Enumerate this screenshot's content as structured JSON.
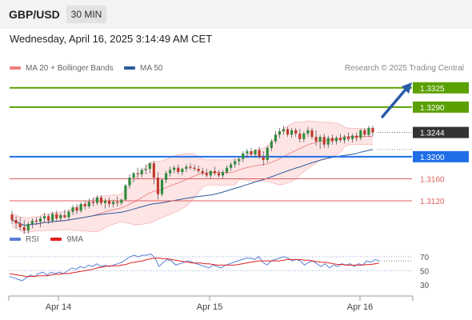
{
  "header": {
    "pair": "GBP/USD",
    "timeframe": "30 MIN"
  },
  "datetime": "Wednesday, April 16, 2025 3:14:49 AM CET",
  "legend": {
    "ma20_label": "MA 20 + Bollinger Bands",
    "ma20_color": "#f08080",
    "ma50_label": "MA 50",
    "ma50_color": "#2e5a9c"
  },
  "research": "Research © 2025 Trading Central",
  "rsi_legend": {
    "rsi_label": "RSI",
    "rsi_color": "#5a7fd6",
    "ma9_label": "9MA",
    "ma9_color": "#e02020"
  },
  "chart_data": {
    "type": "candlestick",
    "x_labels": [
      "Apr 14",
      "Apr 15",
      "Apr 16"
    ],
    "price_axis_range": [
      1.3075,
      1.3345
    ],
    "levels": [
      {
        "price": 1.3325,
        "label": "1.3325",
        "kind": "resistance",
        "color": "#5aa000"
      },
      {
        "price": 1.329,
        "label": "1.3290",
        "kind": "resistance",
        "color": "#5aa000"
      },
      {
        "price": 1.3244,
        "label": "1.3244",
        "kind": "last",
        "color": "#333333"
      },
      {
        "price": 1.32,
        "label": "1.3200",
        "kind": "pivot",
        "color": "#1f6ee8"
      },
      {
        "price": 1.316,
        "label": "1.3160",
        "kind": "support",
        "color": "#e06060"
      },
      {
        "price": 1.312,
        "label": "1.3120",
        "kind": "support",
        "color": "#e06060"
      }
    ],
    "candles": [
      [
        1.3095,
        1.3102,
        1.3078,
        1.3085
      ],
      [
        1.3085,
        1.3092,
        1.307,
        1.3079
      ],
      [
        1.3079,
        1.309,
        1.3066,
        1.3072
      ],
      [
        1.3072,
        1.3085,
        1.306,
        1.3066
      ],
      [
        1.3066,
        1.3082,
        1.306,
        1.3078
      ],
      [
        1.3078,
        1.3088,
        1.307,
        1.3084
      ],
      [
        1.3084,
        1.309,
        1.3076,
        1.3082
      ],
      [
        1.3082,
        1.3092,
        1.3072,
        1.3088
      ],
      [
        1.3088,
        1.3098,
        1.308,
        1.3092
      ],
      [
        1.3092,
        1.3096,
        1.3078,
        1.3084
      ],
      [
        1.3084,
        1.31,
        1.308,
        1.3096
      ],
      [
        1.3096,
        1.3102,
        1.3082,
        1.3088
      ],
      [
        1.3088,
        1.3098,
        1.3082,
        1.3094
      ],
      [
        1.3094,
        1.3104,
        1.3088,
        1.309
      ],
      [
        1.309,
        1.3104,
        1.3086,
        1.31
      ],
      [
        1.31,
        1.3112,
        1.3094,
        1.3108
      ],
      [
        1.3108,
        1.3114,
        1.3096,
        1.3102
      ],
      [
        1.3102,
        1.3118,
        1.3098,
        1.3114
      ],
      [
        1.3114,
        1.312,
        1.3104,
        1.311
      ],
      [
        1.311,
        1.3124,
        1.3106,
        1.3118
      ],
      [
        1.3118,
        1.3126,
        1.311,
        1.3116
      ],
      [
        1.3116,
        1.313,
        1.3112,
        1.3126
      ],
      [
        1.3126,
        1.313,
        1.3112,
        1.3116
      ],
      [
        1.3116,
        1.3124,
        1.3106,
        1.312
      ],
      [
        1.312,
        1.3126,
        1.3108,
        1.3114
      ],
      [
        1.3114,
        1.3122,
        1.3108,
        1.3118
      ],
      [
        1.3118,
        1.3128,
        1.311,
        1.3116
      ],
      [
        1.3116,
        1.3124,
        1.3112,
        1.3122
      ],
      [
        1.3122,
        1.315,
        1.312,
        1.3148
      ],
      [
        1.3148,
        1.3168,
        1.3142,
        1.3162
      ],
      [
        1.3162,
        1.3172,
        1.3154,
        1.317
      ],
      [
        1.317,
        1.318,
        1.316,
        1.3168
      ],
      [
        1.3168,
        1.318,
        1.3162,
        1.3176
      ],
      [
        1.3176,
        1.3186,
        1.3168,
        1.3178
      ],
      [
        1.3178,
        1.319,
        1.317,
        1.3188
      ],
      [
        1.3188,
        1.3192,
        1.315,
        1.3162
      ],
      [
        1.3162,
        1.3172,
        1.3122,
        1.3132
      ],
      [
        1.3132,
        1.316,
        1.3128,
        1.3158
      ],
      [
        1.3158,
        1.3174,
        1.3152,
        1.317
      ],
      [
        1.317,
        1.3182,
        1.3164,
        1.3176
      ],
      [
        1.3176,
        1.3184,
        1.317,
        1.318
      ],
      [
        1.318,
        1.3186,
        1.3168,
        1.3172
      ],
      [
        1.3172,
        1.318,
        1.3166,
        1.3178
      ],
      [
        1.3178,
        1.3186,
        1.3172,
        1.3182
      ],
      [
        1.3182,
        1.3188,
        1.3176,
        1.318
      ],
      [
        1.318,
        1.3186,
        1.3174,
        1.3178
      ],
      [
        1.3178,
        1.3184,
        1.317,
        1.3174
      ],
      [
        1.3174,
        1.318,
        1.3166,
        1.317
      ],
      [
        1.317,
        1.3178,
        1.3162,
        1.3166
      ],
      [
        1.3166,
        1.3176,
        1.316,
        1.3174
      ],
      [
        1.3174,
        1.3182,
        1.3166,
        1.317
      ],
      [
        1.317,
        1.3176,
        1.3162,
        1.3166
      ],
      [
        1.3166,
        1.3176,
        1.316,
        1.3172
      ],
      [
        1.3172,
        1.3184,
        1.3168,
        1.318
      ],
      [
        1.318,
        1.319,
        1.3174,
        1.3186
      ],
      [
        1.3186,
        1.3196,
        1.318,
        1.3192
      ],
      [
        1.3192,
        1.32,
        1.3184,
        1.3196
      ],
      [
        1.3196,
        1.321,
        1.319,
        1.3206
      ],
      [
        1.3206,
        1.3214,
        1.3198,
        1.321
      ],
      [
        1.321,
        1.3216,
        1.32,
        1.3204
      ],
      [
        1.3204,
        1.3214,
        1.3198,
        1.3212
      ],
      [
        1.3212,
        1.3218,
        1.3196,
        1.32
      ],
      [
        1.32,
        1.321,
        1.3184,
        1.3194
      ],
      [
        1.3194,
        1.322,
        1.319,
        1.3216
      ],
      [
        1.3216,
        1.3232,
        1.321,
        1.3228
      ],
      [
        1.3228,
        1.3246,
        1.3224,
        1.324
      ],
      [
        1.324,
        1.3252,
        1.3234,
        1.3246
      ],
      [
        1.3246,
        1.3256,
        1.324,
        1.325
      ],
      [
        1.325,
        1.3254,
        1.3236,
        1.324
      ],
      [
        1.324,
        1.3252,
        1.3234,
        1.3248
      ],
      [
        1.3248,
        1.3252,
        1.3236,
        1.3242
      ],
      [
        1.3242,
        1.325,
        1.3226,
        1.3232
      ],
      [
        1.3232,
        1.3246,
        1.3226,
        1.3242
      ],
      [
        1.3242,
        1.3254,
        1.3236,
        1.3248
      ],
      [
        1.3248,
        1.3252,
        1.3232,
        1.3236
      ],
      [
        1.3236,
        1.3248,
        1.322,
        1.3228
      ],
      [
        1.3228,
        1.324,
        1.3214,
        1.3236
      ],
      [
        1.3236,
        1.3242,
        1.3216,
        1.3222
      ],
      [
        1.3222,
        1.3238,
        1.3216,
        1.3234
      ],
      [
        1.3234,
        1.324,
        1.3222,
        1.3228
      ],
      [
        1.3228,
        1.3238,
        1.3222,
        1.3234
      ],
      [
        1.3234,
        1.3242,
        1.3226,
        1.323
      ],
      [
        1.323,
        1.324,
        1.3224,
        1.3236
      ],
      [
        1.3236,
        1.3244,
        1.3228,
        1.3232
      ],
      [
        1.3232,
        1.3242,
        1.3226,
        1.3238
      ],
      [
        1.3238,
        1.3244,
        1.3228,
        1.3234
      ],
      [
        1.3234,
        1.325,
        1.323,
        1.3248
      ],
      [
        1.3248,
        1.3252,
        1.3236,
        1.324
      ],
      [
        1.324,
        1.3256,
        1.3236,
        1.3252
      ],
      [
        1.3252,
        1.3256,
        1.3238,
        1.3244
      ]
    ],
    "rsi_axis": {
      "ticks": [
        "70",
        "50",
        "30"
      ],
      "range": [
        20,
        80
      ]
    },
    "rsi": [
      42,
      40,
      38,
      36,
      40,
      44,
      42,
      46,
      48,
      44,
      48,
      46,
      48,
      46,
      50,
      54,
      52,
      56,
      54,
      58,
      56,
      60,
      56,
      58,
      56,
      58,
      60,
      62,
      66,
      70,
      72,
      70,
      72,
      72,
      74,
      68,
      56,
      62,
      66,
      64,
      58,
      60,
      62,
      64,
      62,
      60,
      58,
      56,
      54,
      58,
      56,
      54,
      58,
      60,
      62,
      64,
      66,
      68,
      68,
      66,
      70,
      62,
      58,
      64,
      66,
      68,
      70,
      68,
      64,
      66,
      64,
      58,
      62,
      64,
      60,
      56,
      60,
      54,
      58,
      56,
      60,
      58,
      60,
      56,
      60,
      58,
      64,
      62,
      66,
      64
    ],
    "rsi_ma9": [
      46,
      45,
      44,
      43,
      42,
      42,
      42,
      43,
      43,
      43,
      44,
      45,
      45,
      46,
      46,
      47,
      48,
      49,
      50,
      51,
      52,
      54,
      55,
      56,
      57,
      57,
      57,
      58,
      59,
      61,
      62,
      63,
      64,
      66,
      67,
      68,
      68,
      67,
      67,
      66,
      65,
      64,
      63,
      62,
      61,
      61,
      61,
      60,
      60,
      59,
      58,
      58,
      58,
      58,
      58,
      59,
      60,
      61,
      62,
      63,
      64,
      64,
      64,
      64,
      64,
      64,
      65,
      66,
      66,
      66,
      66,
      65,
      65,
      64,
      63,
      62,
      62,
      61,
      60,
      59,
      59,
      58,
      58,
      58,
      58,
      58,
      59,
      59,
      60,
      61
    ]
  }
}
